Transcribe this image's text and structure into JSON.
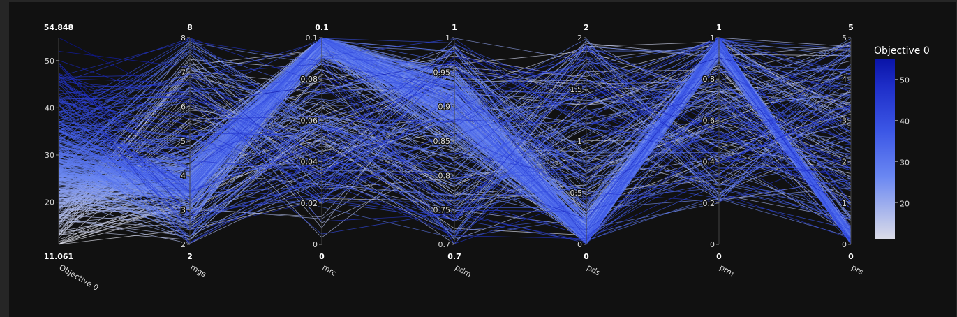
{
  "chart_data": {
    "type": "parallel_coordinates",
    "colorbar": {
      "title": "Objective 0",
      "ticks": [
        "50",
        "40",
        "30",
        "20"
      ],
      "range": [
        11.061,
        54.848
      ],
      "colors": [
        "#dcdde8",
        "#4a6df0",
        "#2a3fd8",
        "#0a14a8"
      ]
    },
    "dimensions": [
      {
        "name": "Objective 0",
        "range": [
          11.061,
          54.848
        ],
        "min_label": "11.061",
        "max_label": "54.848",
        "ticks": [
          {
            "v": 50,
            "t": "50"
          },
          {
            "v": 40,
            "t": "40"
          },
          {
            "v": 30,
            "t": "30"
          },
          {
            "v": 20,
            "t": "20"
          }
        ]
      },
      {
        "name": "mgs",
        "range": [
          2,
          8
        ],
        "min_label": "2",
        "max_label": "8",
        "ticks": [
          {
            "v": 8,
            "t": "8"
          },
          {
            "v": 7,
            "t": "7"
          },
          {
            "v": 6,
            "t": "6"
          },
          {
            "v": 5,
            "t": "5"
          },
          {
            "v": 4,
            "t": "4"
          },
          {
            "v": 3,
            "t": "3"
          },
          {
            "v": 2,
            "t": "2"
          }
        ]
      },
      {
        "name": "mrc",
        "range": [
          0,
          0.1
        ],
        "min_label": "0",
        "max_label": "0.1",
        "ticks": [
          {
            "v": 0.1,
            "t": "0.1"
          },
          {
            "v": 0.08,
            "t": "0.08"
          },
          {
            "v": 0.06,
            "t": "0.06"
          },
          {
            "v": 0.04,
            "t": "0.04"
          },
          {
            "v": 0.02,
            "t": "0.02"
          },
          {
            "v": 0,
            "t": "0"
          }
        ]
      },
      {
        "name": "pdm",
        "range": [
          0.7,
          1
        ],
        "min_label": "0.7",
        "max_label": "1",
        "ticks": [
          {
            "v": 1,
            "t": "1"
          },
          {
            "v": 0.95,
            "t": "0.95"
          },
          {
            "v": 0.9,
            "t": "0.9"
          },
          {
            "v": 0.85,
            "t": "0.85"
          },
          {
            "v": 0.8,
            "t": "0.8"
          },
          {
            "v": 0.75,
            "t": "0.75"
          },
          {
            "v": 0.7,
            "t": "0.7"
          }
        ]
      },
      {
        "name": "pds",
        "range": [
          0,
          2
        ],
        "min_label": "0",
        "max_label": "2",
        "ticks": [
          {
            "v": 2,
            "t": "2"
          },
          {
            "v": 1.5,
            "t": "1.5"
          },
          {
            "v": 1,
            "t": "1"
          },
          {
            "v": 0.5,
            "t": "0.5"
          },
          {
            "v": 0,
            "t": "0"
          }
        ]
      },
      {
        "name": "prm",
        "range": [
          0,
          1
        ],
        "min_label": "0",
        "max_label": "1",
        "ticks": [
          {
            "v": 1,
            "t": "1"
          },
          {
            "v": 0.8,
            "t": "0.8"
          },
          {
            "v": 0.6,
            "t": "0.6"
          },
          {
            "v": 0.4,
            "t": "0.4"
          },
          {
            "v": 0.2,
            "t": "0.2"
          },
          {
            "v": 0,
            "t": "0"
          }
        ]
      },
      {
        "name": "prs",
        "range": [
          0,
          5
        ],
        "min_label": "0",
        "max_label": "5",
        "ticks": [
          {
            "v": 5,
            "t": "5"
          },
          {
            "v": 4,
            "t": "4"
          },
          {
            "v": 3,
            "t": "3"
          },
          {
            "v": 2,
            "t": "2"
          },
          {
            "v": 1,
            "t": "1"
          },
          {
            "v": 0,
            "t": "0"
          }
        ]
      }
    ],
    "lines_profile": {
      "count": 420,
      "main_cluster": {
        "Objective 0": 27,
        "mgs": 3.7,
        "mrc": 0.1,
        "pdm": 0.9,
        "pds": 0.1,
        "prm": 1.0,
        "prs": 0.05
      }
    }
  }
}
